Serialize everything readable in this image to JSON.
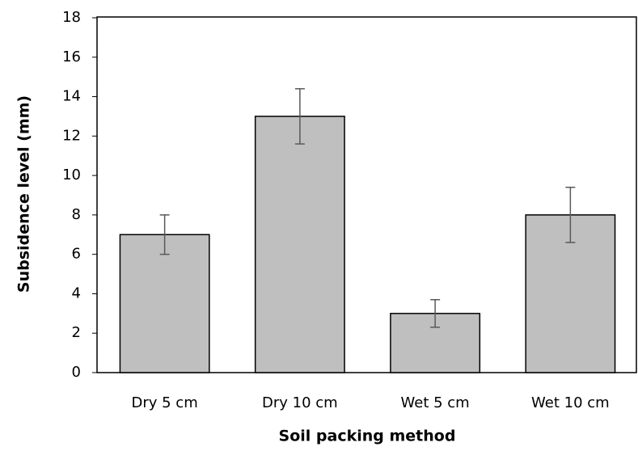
{
  "chart_data": {
    "type": "bar",
    "x_label": "Soil packing method",
    "y_label": "Subsidence level (mm)",
    "categories": [
      "Dry 5 cm",
      "Dry 10 cm",
      "Wet 5 cm",
      "Wet 10 cm"
    ],
    "values": [
      7,
      13,
      3,
      8
    ],
    "errors": [
      1,
      1.4,
      0.7,
      1.4
    ],
    "color": "#bfbfbf",
    "ylim": [
      0,
      18
    ],
    "yticks": [
      0,
      2,
      4,
      6,
      8,
      10,
      12,
      14,
      16,
      18
    ],
    "grid": false
  }
}
